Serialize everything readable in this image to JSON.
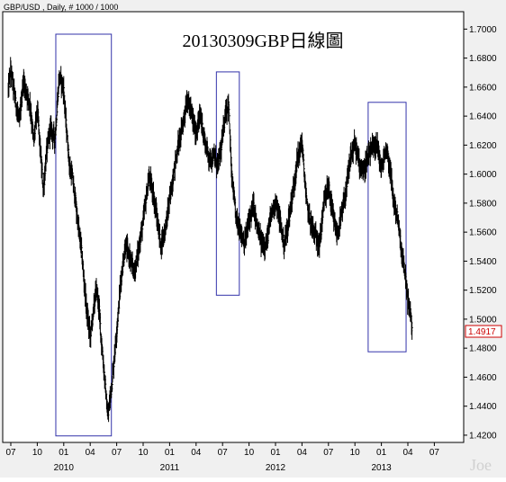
{
  "header": {
    "label": "GBP/USD , Daily, # 1000 / 1000"
  },
  "watermark": "Joe",
  "chart_data": {
    "type": "line",
    "style": "high-low bars",
    "title": "20130309GBP日線圖",
    "symbol": "GBP/USD",
    "period": "Daily",
    "last_value": "1.4917",
    "last_value_color": "#cc0000",
    "line_color": "#000000",
    "highlight_box_color": "#3333aa",
    "ylim": [
      1.415,
      1.712
    ],
    "y_ticks": [
      "1.7000",
      "1.6800",
      "1.6600",
      "1.6400",
      "1.6200",
      "1.6000",
      "1.5800",
      "1.5600",
      "1.5400",
      "1.5200",
      "1.5000",
      "1.4800",
      "1.4600",
      "1.4400",
      "1.4200"
    ],
    "x_month_ticks": [
      {
        "label": "07",
        "m": 0
      },
      {
        "label": "10",
        "m": 3
      },
      {
        "label": "01",
        "m": 6
      },
      {
        "label": "04",
        "m": 9
      },
      {
        "label": "07",
        "m": 12
      },
      {
        "label": "10",
        "m": 15
      },
      {
        "label": "01",
        "m": 18
      },
      {
        "label": "04",
        "m": 21
      },
      {
        "label": "07",
        "m": 24
      },
      {
        "label": "10",
        "m": 27
      },
      {
        "label": "01",
        "m": 30
      },
      {
        "label": "04",
        "m": 33
      },
      {
        "label": "07",
        "m": 36
      },
      {
        "label": "10",
        "m": 39
      },
      {
        "label": "01",
        "m": 42
      },
      {
        "label": "04",
        "m": 45
      },
      {
        "label": "07",
        "m": 48
      }
    ],
    "x_year_labels": [
      {
        "label": "2010",
        "m": 6
      },
      {
        "label": "2011",
        "m": 18
      },
      {
        "label": "2012",
        "m": 30
      },
      {
        "label": "2013",
        "m": 42
      }
    ],
    "series": [
      {
        "x_month": [
          -0.3,
          0,
          0.6,
          1,
          1.4,
          1.8,
          2.2,
          2.6,
          3,
          3.4,
          3.7,
          4,
          4.5,
          5,
          5.2,
          5.5,
          6,
          6.3,
          6.7,
          7,
          7.5,
          8,
          8.5,
          9,
          9.3,
          9.7,
          10,
          10.3,
          10.6,
          11,
          11.5,
          12,
          12.5,
          13,
          13.5,
          14,
          14.5,
          15,
          15.3,
          15.7,
          16,
          16.5,
          17,
          17.5,
          18,
          18.5,
          19,
          19.5,
          20,
          20.5,
          21,
          21.5,
          22,
          22.5,
          23,
          23.5,
          24,
          24.3,
          24.7,
          25,
          25.5,
          26,
          26.5,
          27,
          27.5,
          28,
          28.5,
          29,
          29.5,
          30,
          30.5,
          31,
          31.5,
          32,
          32.5,
          33,
          33.5,
          34,
          34.5,
          35,
          35.5,
          36,
          36.5,
          37,
          37.5,
          38,
          38.5,
          39,
          39.5,
          40,
          40.5,
          41,
          41.5,
          42,
          42.3,
          42.6,
          43,
          43.4,
          43.8,
          44,
          44.3,
          44.7,
          45,
          45.3,
          45.5
        ],
        "high_low_mid": [
          1.658,
          1.672,
          1.648,
          1.636,
          1.664,
          1.656,
          1.648,
          1.622,
          1.646,
          1.612,
          1.588,
          1.612,
          1.632,
          1.624,
          1.641,
          1.668,
          1.658,
          1.632,
          1.603,
          1.598,
          1.572,
          1.548,
          1.512,
          1.488,
          1.502,
          1.522,
          1.508,
          1.482,
          1.462,
          1.432,
          1.458,
          1.492,
          1.528,
          1.551,
          1.542,
          1.532,
          1.548,
          1.568,
          1.582,
          1.598,
          1.591,
          1.573,
          1.551,
          1.562,
          1.582,
          1.602,
          1.621,
          1.634,
          1.652,
          1.641,
          1.628,
          1.641,
          1.622,
          1.611,
          1.612,
          1.606,
          1.624,
          1.642,
          1.648,
          1.602,
          1.571,
          1.562,
          1.552,
          1.568,
          1.578,
          1.561,
          1.551,
          1.552,
          1.572,
          1.582,
          1.568,
          1.551,
          1.568,
          1.588,
          1.611,
          1.622,
          1.581,
          1.566,
          1.558,
          1.551,
          1.582,
          1.592,
          1.571,
          1.558,
          1.572,
          1.588,
          1.611,
          1.621,
          1.608,
          1.602,
          1.611,
          1.618,
          1.621,
          1.602,
          1.612,
          1.618,
          1.603,
          1.581,
          1.571,
          1.562,
          1.545,
          1.531,
          1.512,
          1.505,
          1.492
        ]
      }
    ],
    "highlight_boxes": [
      {
        "x0": 5.1,
        "x1": 11.4,
        "y_top": 1.6965,
        "y_bottom": 1.4195
      },
      {
        "x0": 23.3,
        "x1": 25.9,
        "y_top": 1.6705,
        "y_bottom": 1.5165
      },
      {
        "x0": 40.5,
        "x1": 44.8,
        "y_top": 1.6495,
        "y_bottom": 1.4775
      }
    ]
  }
}
